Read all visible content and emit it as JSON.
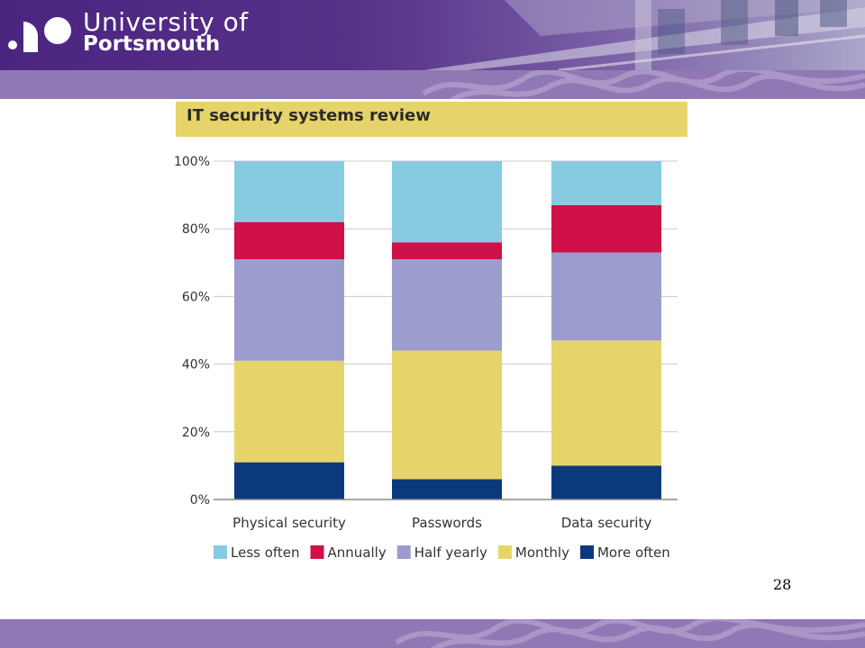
{
  "header": {
    "university_line1": "University of",
    "university_line2": "Portsmouth"
  },
  "colors": {
    "header_purple": "#4a2580",
    "band_purple": "#9078b4",
    "title_bar": "#e6d46a",
    "less_often": "#87cbe2",
    "annually": "#d01048",
    "half_yearly": "#9c9ccf",
    "monthly": "#e6d46a",
    "more_often": "#0a3a7c"
  },
  "chart_data": {
    "type": "bar",
    "stacked": true,
    "title": "IT security systems review",
    "categories": [
      "Physical security",
      "Passwords",
      "Data security"
    ],
    "series": [
      {
        "name": "More often",
        "color": "#0a3a7c",
        "values": [
          11,
          6,
          10
        ]
      },
      {
        "name": "Monthly",
        "color": "#e6d46a",
        "values": [
          30,
          38,
          37
        ]
      },
      {
        "name": "Half yearly",
        "color": "#9c9ccf",
        "values": [
          30,
          27,
          26
        ]
      },
      {
        "name": "Annually",
        "color": "#d01048",
        "values": [
          11,
          5,
          14
        ]
      },
      {
        "name": "Less often",
        "color": "#87cbe2",
        "values": [
          18,
          24,
          13
        ]
      }
    ],
    "legend_order": [
      "Less often",
      "Annually",
      "Half yearly",
      "Monthly",
      "More often"
    ],
    "yticks": [
      "0%",
      "20%",
      "40%",
      "60%",
      "80%",
      "100%"
    ],
    "ylim": [
      0,
      100
    ],
    "grid": true,
    "legend_position": "bottom"
  },
  "footer": {
    "page_number": "28"
  }
}
